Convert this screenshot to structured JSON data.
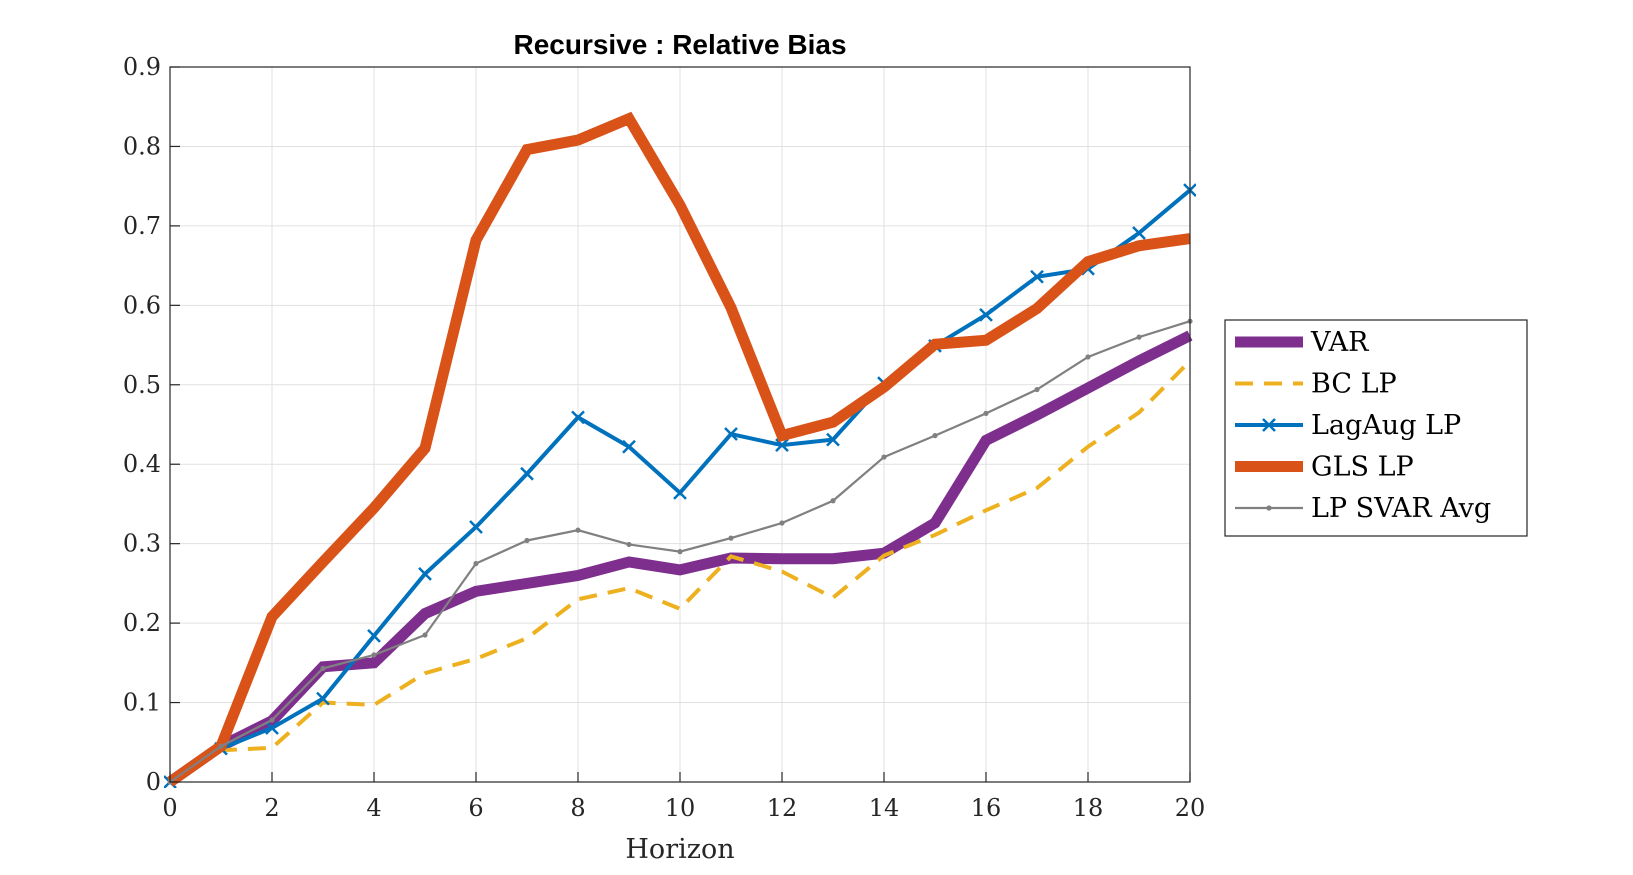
{
  "chart_data": {
    "type": "line",
    "title": "Recursive : Relative Bias",
    "xlabel": "Horizon",
    "ylabel": "",
    "xlim": [
      0,
      20
    ],
    "ylim": [
      0,
      0.9
    ],
    "xticks": [
      0,
      2,
      4,
      6,
      8,
      10,
      12,
      14,
      16,
      18,
      20
    ],
    "yticks": [
      0,
      0.1,
      0.2,
      0.3,
      0.4,
      0.5,
      0.6,
      0.7,
      0.8,
      0.9
    ],
    "grid": true,
    "legend_position": "right",
    "x": [
      0,
      1,
      2,
      3,
      4,
      5,
      6,
      7,
      8,
      9,
      10,
      11,
      12,
      13,
      14,
      15,
      16,
      17,
      18,
      19,
      20
    ],
    "series": [
      {
        "name": "VAR",
        "color": "#7E2F8E",
        "style": "solid",
        "width": 11,
        "marker": "none",
        "values": [
          0.0,
          0.045,
          0.077,
          0.145,
          0.15,
          0.212,
          0.24,
          0.25,
          0.26,
          0.277,
          0.267,
          0.282,
          0.281,
          0.281,
          0.288,
          0.326,
          0.43,
          0.462,
          0.496,
          0.53,
          0.562
        ]
      },
      {
        "name": "BC LP",
        "color": "#EDB120",
        "style": "dashed",
        "width": 4,
        "marker": "none",
        "values": [
          0.0,
          0.04,
          0.043,
          0.1,
          0.097,
          0.137,
          0.155,
          0.181,
          0.23,
          0.244,
          0.218,
          0.284,
          0.265,
          0.232,
          0.285,
          0.311,
          0.342,
          0.37,
          0.422,
          0.465,
          0.53
        ]
      },
      {
        "name": "LagAug LP",
        "color": "#0072BD",
        "style": "solid",
        "width": 4,
        "marker": "x",
        "values": [
          0.0,
          0.042,
          0.068,
          0.105,
          0.184,
          0.262,
          0.321,
          0.388,
          0.459,
          0.422,
          0.364,
          0.438,
          0.424,
          0.431,
          0.502,
          0.549,
          0.588,
          0.636,
          0.646,
          0.691,
          0.745
        ]
      },
      {
        "name": "GLS LP",
        "color": "#D95319",
        "style": "solid",
        "width": 11,
        "marker": "none",
        "values": [
          0.0,
          0.045,
          0.208,
          0.277,
          0.345,
          0.42,
          0.682,
          0.796,
          0.808,
          0.835,
          0.726,
          0.597,
          0.436,
          0.453,
          0.497,
          0.551,
          0.556,
          0.596,
          0.655,
          0.675,
          0.684
        ]
      },
      {
        "name": "LP SVAR Avg",
        "color": "#808080",
        "style": "solid",
        "width": 2.2,
        "marker": "dot",
        "values": [
          0.0,
          0.045,
          0.078,
          0.143,
          0.16,
          0.185,
          0.275,
          0.304,
          0.317,
          0.299,
          0.29,
          0.307,
          0.326,
          0.354,
          0.409,
          0.436,
          0.464,
          0.494,
          0.535,
          0.56,
          0.58
        ]
      }
    ]
  }
}
